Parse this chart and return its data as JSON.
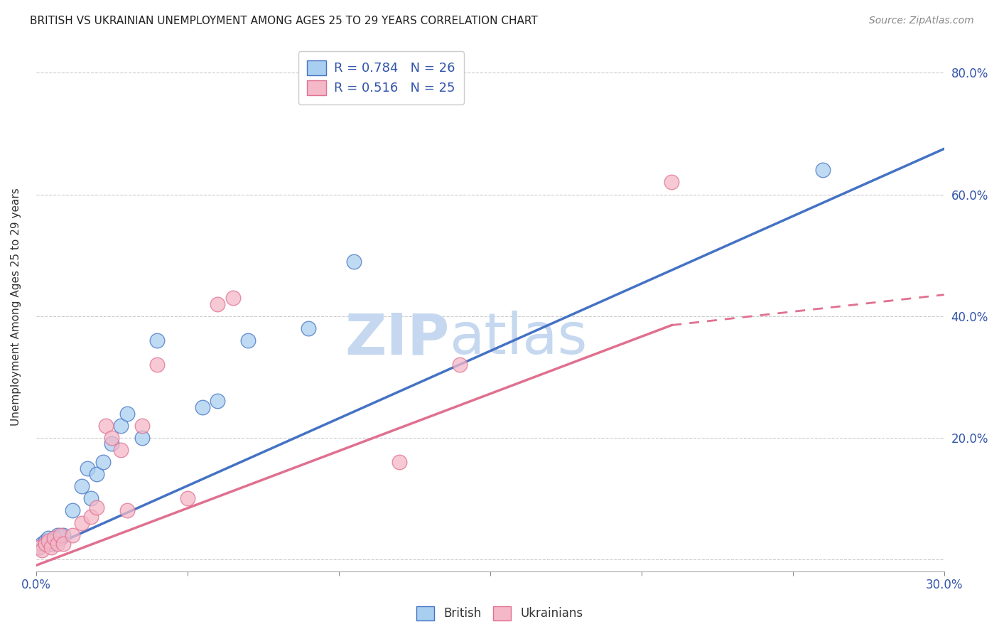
{
  "title": "BRITISH VS UKRAINIAN UNEMPLOYMENT AMONG AGES 25 TO 29 YEARS CORRELATION CHART",
  "source": "Source: ZipAtlas.com",
  "ylabel": "Unemployment Among Ages 25 to 29 years",
  "xlim": [
    0.0,
    0.3
  ],
  "ylim": [
    -0.02,
    0.85
  ],
  "xticks": [
    0.0,
    0.05,
    0.1,
    0.15,
    0.2,
    0.25,
    0.3
  ],
  "xtick_labels": [
    "0.0%",
    "",
    "",
    "",
    "",
    "",
    "30.0%"
  ],
  "yticks": [
    0.0,
    0.2,
    0.4,
    0.6,
    0.8
  ],
  "ytick_labels": [
    "",
    "20.0%",
    "40.0%",
    "60.0%",
    "80.0%"
  ],
  "british_r": 0.784,
  "british_n": 26,
  "ukrainian_r": 0.516,
  "ukrainian_n": 25,
  "british_color": "#A8CFF0",
  "ukrainian_color": "#F4B8C8",
  "british_line_color": "#4472C4",
  "ukrainian_line_color": "#E07090",
  "watermark": "ZIPatlas",
  "watermark_color": "#C5D8F0",
  "british_x": [
    0.001,
    0.002,
    0.003,
    0.004,
    0.005,
    0.006,
    0.007,
    0.008,
    0.009,
    0.012,
    0.015,
    0.017,
    0.018,
    0.02,
    0.022,
    0.025,
    0.028,
    0.03,
    0.035,
    0.04,
    0.055,
    0.06,
    0.07,
    0.09,
    0.105,
    0.26
  ],
  "british_y": [
    0.02,
    0.025,
    0.03,
    0.035,
    0.025,
    0.03,
    0.04,
    0.035,
    0.04,
    0.08,
    0.12,
    0.15,
    0.1,
    0.14,
    0.16,
    0.19,
    0.22,
    0.24,
    0.2,
    0.36,
    0.25,
    0.26,
    0.36,
    0.38,
    0.49,
    0.64
  ],
  "ukrainian_x": [
    0.001,
    0.002,
    0.003,
    0.004,
    0.005,
    0.006,
    0.007,
    0.008,
    0.009,
    0.012,
    0.015,
    0.018,
    0.02,
    0.023,
    0.025,
    0.028,
    0.03,
    0.035,
    0.04,
    0.05,
    0.06,
    0.065,
    0.12,
    0.14,
    0.21
  ],
  "ukrainian_y": [
    0.02,
    0.015,
    0.025,
    0.03,
    0.02,
    0.035,
    0.025,
    0.04,
    0.025,
    0.04,
    0.06,
    0.07,
    0.085,
    0.22,
    0.2,
    0.18,
    0.08,
    0.22,
    0.32,
    0.1,
    0.42,
    0.43,
    0.16,
    0.32,
    0.62
  ],
  "british_line": [
    0.0,
    0.3,
    0.01,
    0.675
  ],
  "ukrainian_line_solid": [
    0.0,
    0.21,
    -0.01,
    0.385
  ],
  "ukrainian_line_dash": [
    0.21,
    0.3,
    0.385,
    0.435
  ],
  "figsize": [
    14.06,
    8.92
  ],
  "dpi": 100
}
